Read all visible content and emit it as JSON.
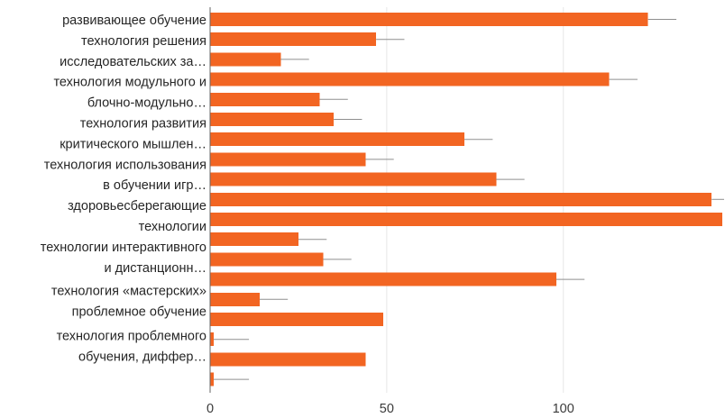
{
  "chart_data": {
    "type": "bar",
    "orientation": "horizontal",
    "bar_color": "#F26522",
    "error_bar_color": "#8f8f8f",
    "grid": true,
    "xlim": [
      0,
      145
    ],
    "xticks": [
      0,
      50,
      100
    ],
    "category_labels": [
      "развивающее обучение",
      "технология решения",
      "исследовательских за…",
      "технология модульного и",
      "блочно-модульно…",
      "технология развития",
      "критического мышлен…",
      "технология использования",
      "в обучении игр…",
      "здоровьесберегающие",
      "технологии",
      "технологии интерактивного",
      "и дистанционн…",
      "технология «мастерских»",
      "проблемное обучение",
      "технология проблемного",
      "обучения, диффер…"
    ],
    "bars": [
      {
        "value": 124,
        "error": 4
      },
      {
        "value": 47,
        "error": 4
      },
      {
        "value": 20,
        "error": 4
      },
      {
        "value": 113,
        "error": 4
      },
      {
        "value": 31,
        "error": 4
      },
      {
        "value": 35,
        "error": 4
      },
      {
        "value": 72,
        "error": 4
      },
      {
        "value": 44,
        "error": 4
      },
      {
        "value": 81,
        "error": 4
      },
      {
        "value": 142,
        "error": 3
      },
      {
        "value": 145,
        "error": 0
      },
      {
        "value": 25,
        "error": 4
      },
      {
        "value": 32,
        "error": 4
      },
      {
        "value": 98,
        "error": 4
      },
      {
        "value": 14,
        "error": 4
      },
      {
        "value": 49,
        "error": 0
      },
      {
        "value": 1,
        "error": 5
      },
      {
        "value": 44,
        "error": 0
      },
      {
        "value": 1,
        "error": 5
      }
    ]
  }
}
